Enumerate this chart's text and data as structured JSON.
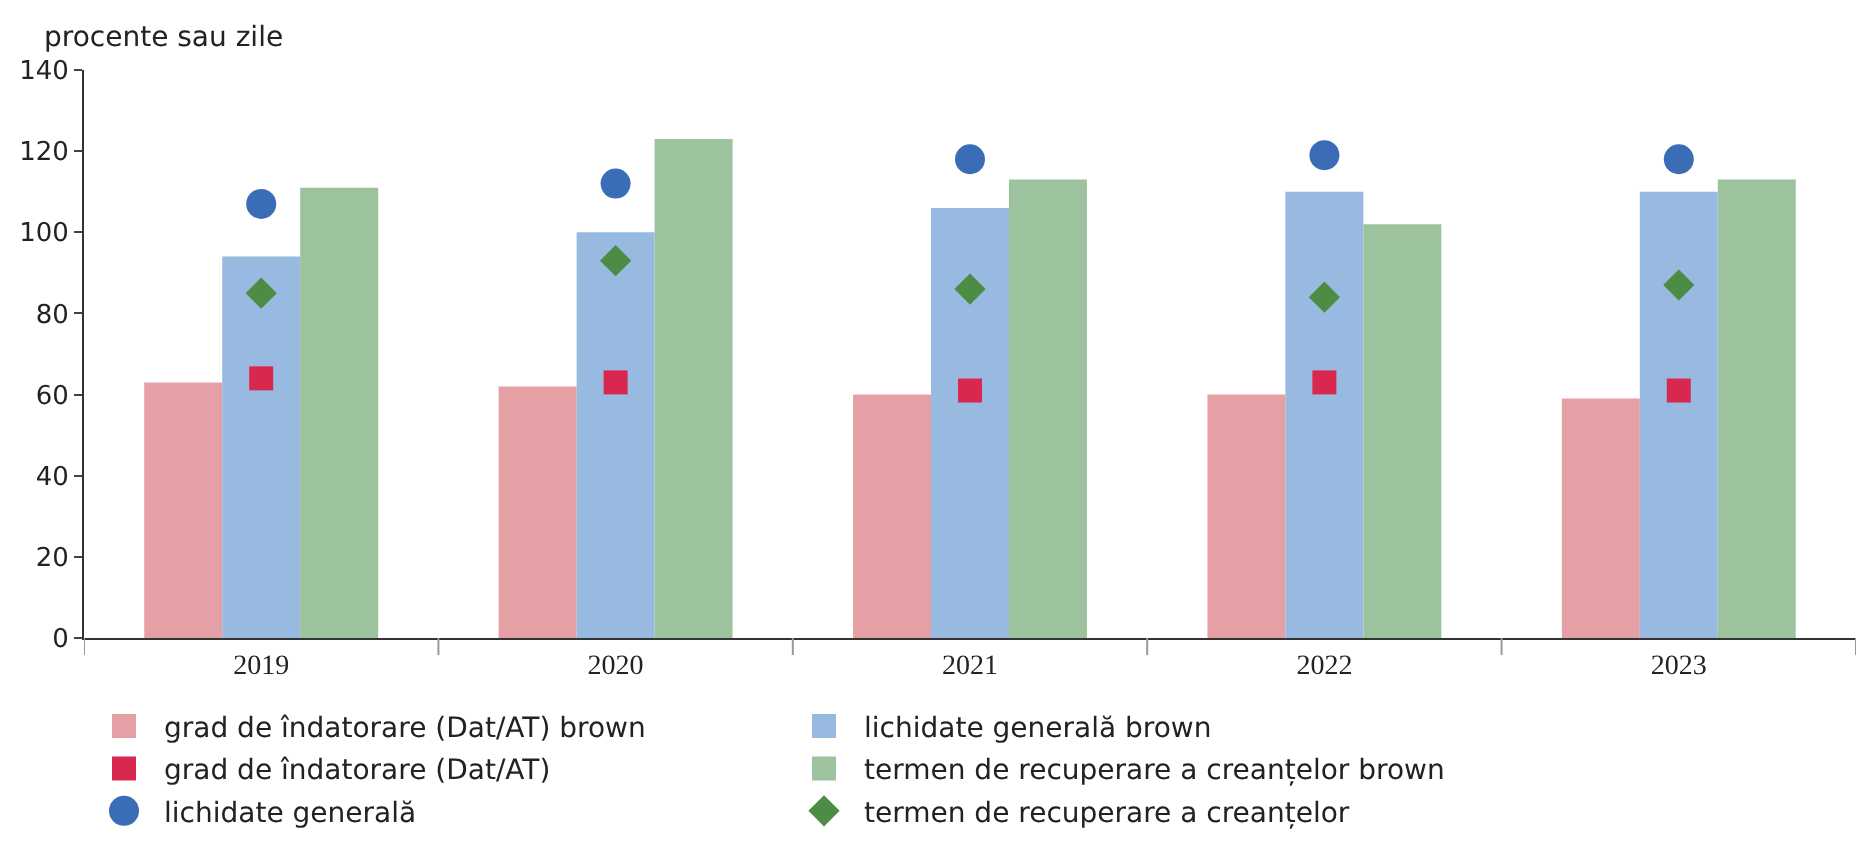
{
  "chart_data": {
    "type": "bar",
    "ylabel": "procente sau zile",
    "categories": [
      "2019",
      "2020",
      "2021",
      "2022",
      "2023"
    ],
    "series": [
      {
        "name": "grad de îndatorare (Dat/AT) brown",
        "color": "#e5a0a5",
        "values": [
          63,
          62,
          60,
          60,
          59
        ]
      },
      {
        "name": "lichidate generală brown",
        "color": "#98b9e0",
        "values": [
          94,
          100,
          106,
          110,
          110
        ]
      },
      {
        "name": "grad de îndatorare (Dat/AT)",
        "type": "scatter",
        "marker": "square",
        "color": "#d9284f",
        "values": [
          64,
          63,
          61,
          63,
          61
        ]
      },
      {
        "name": "termen de recuperare a creanțelor brown",
        "color": "#9cc29e",
        "values": [
          111,
          123,
          113,
          102,
          113
        ]
      },
      {
        "name": "lichidate generală",
        "type": "scatter",
        "marker": "circle",
        "color": "#3a6db5",
        "values": [
          107,
          112,
          118,
          119,
          118
        ]
      },
      {
        "name": "termen de recuperare a creanțelor",
        "type": "scatter",
        "marker": "diamond",
        "color": "#4c8c44",
        "values": [
          85,
          93,
          86,
          84,
          87
        ]
      }
    ],
    "ylim": [
      0,
      140
    ],
    "yticks": [
      0,
      20,
      40,
      60,
      80,
      100,
      120,
      140
    ],
    "grid": false,
    "legend": "bottom"
  }
}
